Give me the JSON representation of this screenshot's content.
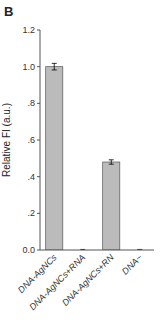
{
  "chart_data": {
    "type": "bar",
    "title": "B",
    "ylabel": "Relative FI (a.u.)",
    "categories": [
      "DNA-AgNCs",
      "DNA-AgNCs+RNA",
      "DNA-AgNCs+RN",
      "DNA~"
    ],
    "values": [
      1.0,
      0.0,
      0.48,
      0.0
    ],
    "errors": [
      0.018,
      0.003,
      0.012,
      0.003
    ],
    "color": "#bbbbbb",
    "ylim": [
      0.0,
      1.2
    ],
    "yticks": [
      {
        "value": 0.0,
        "label": "0.0"
      },
      {
        "value": 0.2,
        "label": ".2"
      },
      {
        "value": 0.4,
        "label": ".4"
      },
      {
        "value": 0.6,
        "label": ".6"
      },
      {
        "value": 0.8,
        "label": ".8"
      },
      {
        "value": 1.0,
        "label": "1.0"
      },
      1.2
    ],
    "grid": false
  }
}
